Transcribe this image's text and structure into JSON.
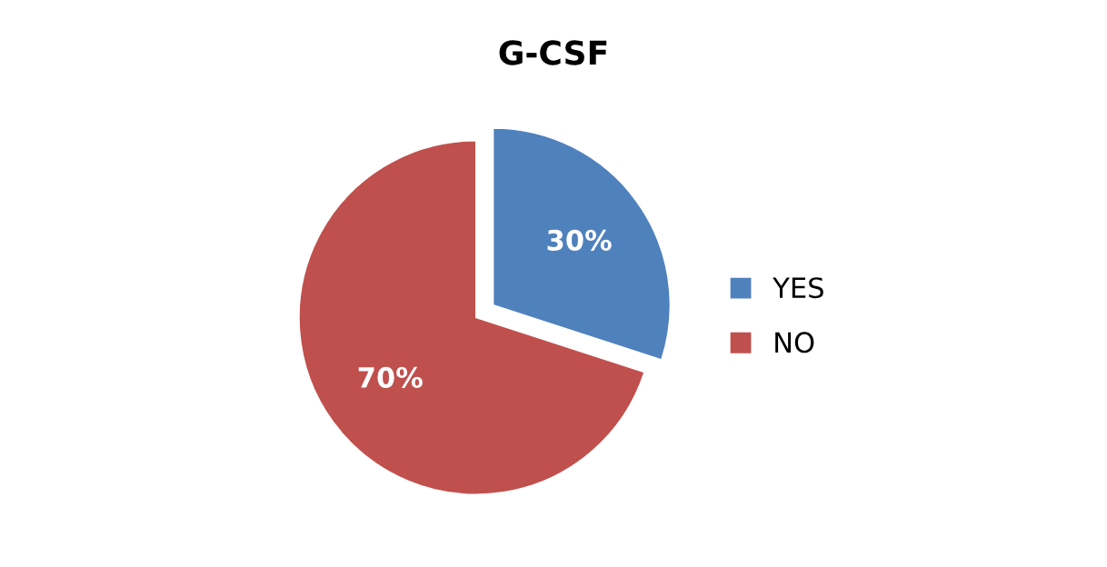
{
  "chart_data": {
    "type": "pie",
    "title": "G-CSF",
    "categories": [
      "YES",
      "NO"
    ],
    "values": [
      30,
      70
    ],
    "colors": [
      "#4f81bd",
      "#c0504d"
    ],
    "value_labels": [
      "30%",
      "70%"
    ],
    "legend": "right"
  }
}
